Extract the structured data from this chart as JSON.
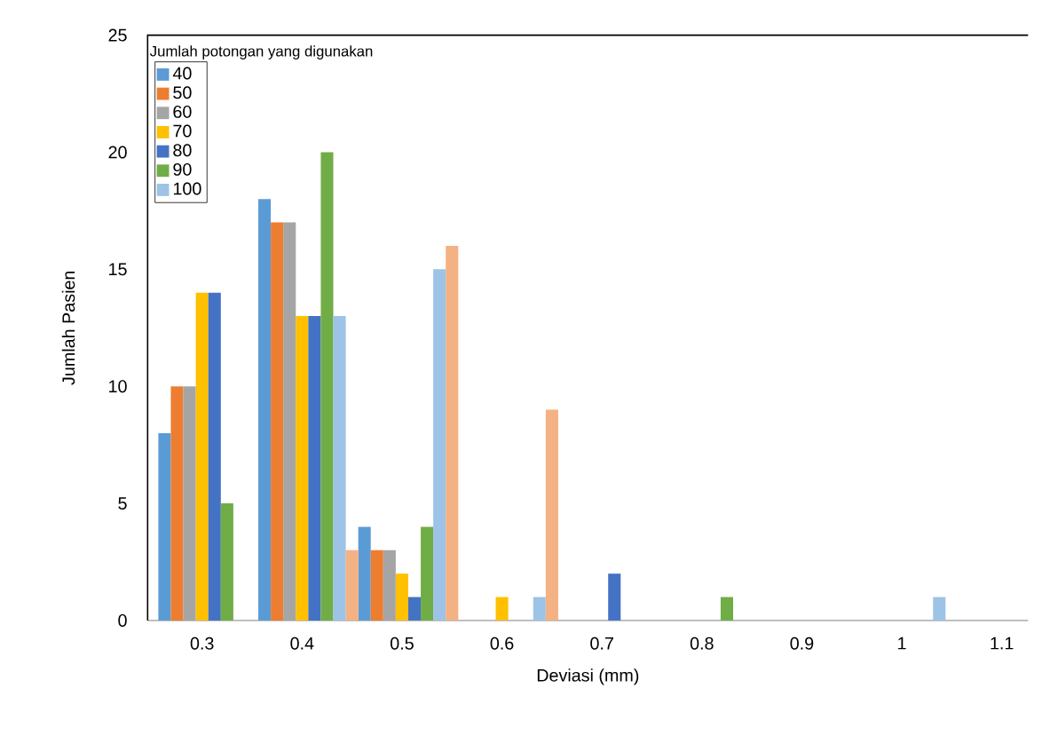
{
  "chart_data": {
    "type": "bar",
    "xlabel": "Deviasi (mm)",
    "ylabel": "Jumlah Pasien",
    "legend_title": "Jumlah potongan yang digunakan",
    "categories": [
      "0.3",
      "0.4",
      "0.5",
      "0.6",
      "0.7",
      "0.8",
      "0.9",
      "1",
      "1.1"
    ],
    "series": [
      {
        "name": "40",
        "color": "#5b9bd5",
        "values": [
          8,
          18,
          4,
          0,
          0,
          0,
          0,
          0,
          0
        ]
      },
      {
        "name": "50",
        "color": "#ed7d31",
        "values": [
          10,
          17,
          3,
          0,
          0,
          0,
          0,
          0,
          0
        ]
      },
      {
        "name": "60",
        "color": "#a5a5a5",
        "values": [
          10,
          17,
          3,
          0,
          0,
          0,
          0,
          0,
          0
        ]
      },
      {
        "name": "70",
        "color": "#ffc000",
        "values": [
          14,
          13,
          2,
          1,
          0,
          0,
          0,
          0,
          0
        ]
      },
      {
        "name": "80",
        "color": "#4472c4",
        "values": [
          14,
          13,
          1,
          0,
          2,
          0,
          0,
          0,
          0
        ]
      },
      {
        "name": "90",
        "color": "#70ad47",
        "values": [
          5,
          20,
          4,
          0,
          0,
          1,
          0,
          0,
          0
        ]
      },
      {
        "name": "100",
        "color": "#9dc3e6",
        "values": [
          0,
          13,
          15,
          1,
          0,
          0,
          0,
          1,
          0
        ]
      },
      {
        "color": "#f4b183",
        "values": [
          0,
          3,
          16,
          9,
          0,
          0,
          0,
          0,
          0
        ]
      }
    ],
    "ylim": [
      0,
      25
    ],
    "yticks": [
      0,
      5,
      10,
      15,
      20,
      25
    ],
    "grid": false,
    "legend": "top left"
  }
}
